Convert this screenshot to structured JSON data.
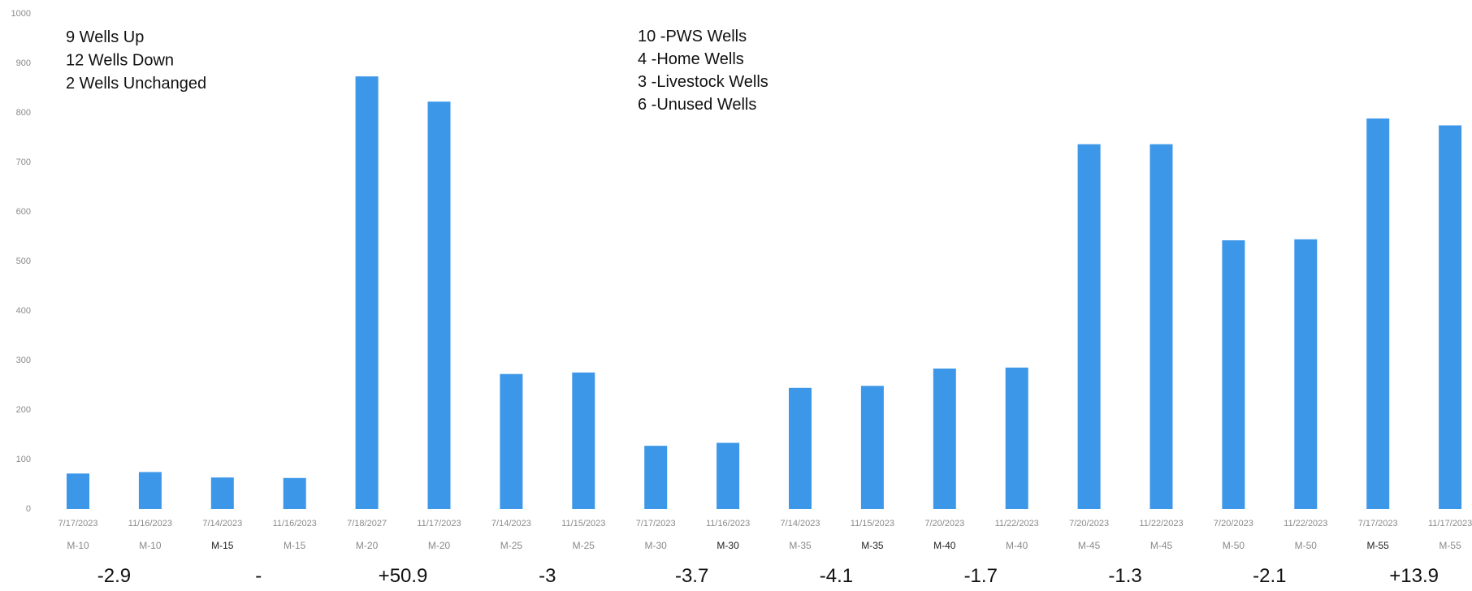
{
  "chart_data": {
    "type": "bar",
    "color": "#3d97e8",
    "ylim": [
      0,
      1000
    ],
    "yticks": [
      0,
      100,
      200,
      300,
      400,
      500,
      600,
      700,
      800,
      900,
      1000
    ],
    "grid": false,
    "bars": [
      {
        "date": "7/17/2023",
        "well": "M-10",
        "value": 70
      },
      {
        "date": "11/16/2023",
        "well": "M-10",
        "value": 73
      },
      {
        "date": "7/14/2023",
        "well": "M-15",
        "value": 62
      },
      {
        "date": "11/16/2023",
        "well": "M-15",
        "value": 61
      },
      {
        "date": "7/18/2027",
        "well": "M-20",
        "value": 872
      },
      {
        "date": "11/17/2023",
        "well": "M-20",
        "value": 821
      },
      {
        "date": "7/14/2023",
        "well": "M-25",
        "value": 271
      },
      {
        "date": "11/15/2023",
        "well": "M-25",
        "value": 274
      },
      {
        "date": "7/17/2023",
        "well": "M-30",
        "value": 126
      },
      {
        "date": "11/16/2023",
        "well": "M-30",
        "value": 132
      },
      {
        "date": "7/14/2023",
        "well": "M-35",
        "value": 243
      },
      {
        "date": "11/15/2023",
        "well": "M-35",
        "value": 247
      },
      {
        "date": "7/20/2023",
        "well": "M-40",
        "value": 282
      },
      {
        "date": "11/22/2023",
        "well": "M-40",
        "value": 284
      },
      {
        "date": "7/20/2023",
        "well": "M-45",
        "value": 735
      },
      {
        "date": "11/22/2023",
        "well": "M-45",
        "value": 735
      },
      {
        "date": "7/20/2023",
        "well": "M-50",
        "value": 541
      },
      {
        "date": "11/22/2023",
        "well": "M-50",
        "value": 543
      },
      {
        "date": "7/17/2023",
        "well": "M-55",
        "value": 787
      },
      {
        "date": "11/17/2023",
        "well": "M-55",
        "value": 773
      }
    ],
    "well_label_emphasis": [
      false,
      false,
      true,
      false,
      false,
      false,
      false,
      false,
      false,
      true,
      false,
      true,
      true,
      false,
      false,
      false,
      false,
      false,
      true,
      false
    ],
    "changes": [
      "-2.9",
      "-",
      "+50.9",
      "-3",
      "-3.7",
      "-4.1",
      "-1.7",
      "-1.3",
      "-2.1",
      "+13.9"
    ],
    "legend_left": [
      "9   Wells Up",
      "12 Wells Down",
      "2   Wells Unchanged"
    ],
    "legend_right": [
      "10 -PWS Wells",
      "4   -Home Wells",
      "3   -Livestock Wells",
      "6   -Unused Wells"
    ]
  }
}
